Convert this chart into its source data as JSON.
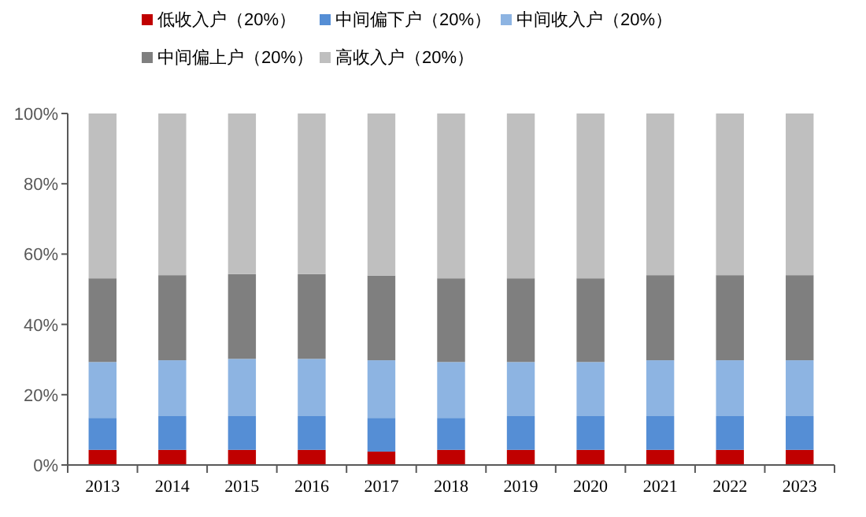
{
  "chart_data": {
    "type": "bar",
    "stacked": true,
    "legend": "top",
    "grid": false,
    "categories": [
      "2013",
      "2014",
      "2015",
      "2016",
      "2017",
      "2018",
      "2019",
      "2020",
      "2021",
      "2022",
      "2023"
    ],
    "ylim": [
      0,
      100
    ],
    "yticks": [
      {
        "value": 0,
        "label": "0%"
      },
      {
        "value": 20,
        "label": "20%"
      },
      {
        "value": 40,
        "label": "40%"
      },
      {
        "value": 60,
        "label": "60%"
      },
      {
        "value": 80,
        "label": "80%"
      },
      {
        "value": 100,
        "label": "100%"
      }
    ],
    "series": [
      {
        "name": "低收入户（20%）",
        "color": "#c00000",
        "values": [
          4.3,
          4.3,
          4.3,
          4.3,
          3.8,
          4.3,
          4.3,
          4.3,
          4.3,
          4.3,
          4.3
        ]
      },
      {
        "name": "中间偏下户（20%）",
        "color": "#558ed5",
        "values": [
          9.1,
          9.6,
          9.6,
          9.6,
          9.6,
          9.1,
          9.6,
          9.6,
          9.6,
          9.6,
          9.6
        ]
      },
      {
        "name": "中间收入户（20%）",
        "color": "#8db4e2",
        "values": [
          15.9,
          15.9,
          16.3,
          16.3,
          16.4,
          15.9,
          15.4,
          15.4,
          15.9,
          15.9,
          15.9
        ]
      },
      {
        "name": "中间偏上户（20%）",
        "color": "#7f7f7f",
        "values": [
          23.8,
          24.2,
          24.1,
          24.1,
          24.1,
          23.8,
          23.8,
          23.8,
          24.2,
          24.2,
          24.2
        ]
      },
      {
        "name": "高收入户（20%）",
        "color": "#bfbfbf",
        "values": [
          46.9,
          46.0,
          45.7,
          45.7,
          46.1,
          46.9,
          46.9,
          46.9,
          46.0,
          46.0,
          46.0
        ]
      }
    ]
  }
}
